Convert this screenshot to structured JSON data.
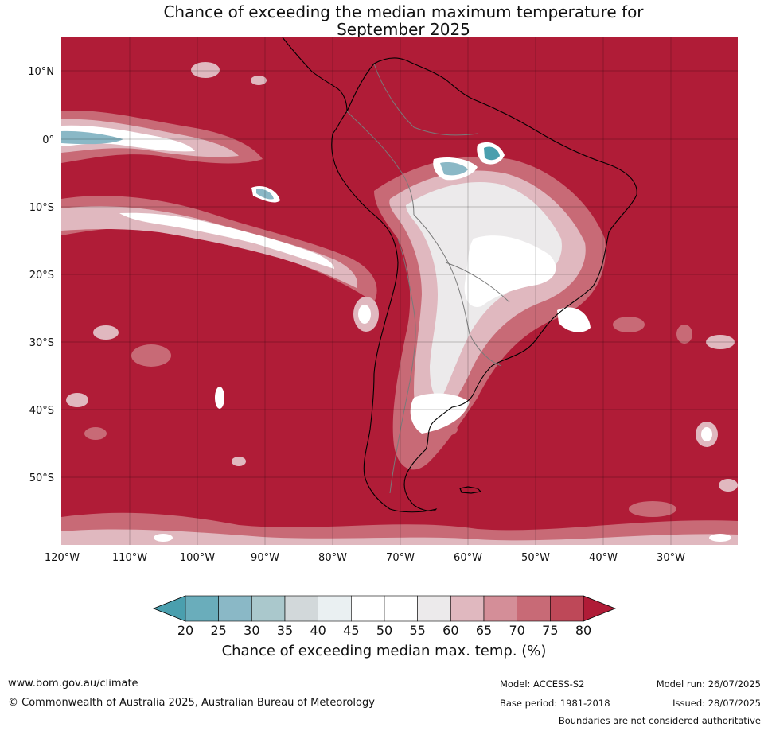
{
  "title_line1": "Chance of exceeding the median maximum temperature for",
  "title_line2": "September 2025",
  "lat_labels": [
    "10°N",
    "0°",
    "10°S",
    "20°S",
    "30°S",
    "40°S",
    "50°S"
  ],
  "lon_labels": [
    "120°W",
    "110°W",
    "100°W",
    "90°W",
    "80°W",
    "70°W",
    "60°W",
    "50°W",
    "40°W",
    "30°W"
  ],
  "colorbar": {
    "ticks": [
      "20",
      "25",
      "30",
      "35",
      "40",
      "45",
      "50",
      "55",
      "60",
      "65",
      "70",
      "75",
      "80"
    ],
    "colors": [
      "#4a9fae",
      "#6aadbb",
      "#8ab8c6",
      "#aac8cc",
      "#d2d8da",
      "#eaf0f2",
      "#ffffff",
      "#ffffff",
      "#eceaeb",
      "#e0b8bf",
      "#d48e98",
      "#c86a76",
      "#be4858",
      "#b01c37"
    ],
    "label": "Chance of exceeding median max. temp. (%)"
  },
  "colors": {
    "high": "#b01c37",
    "band70": "#c86a76",
    "band60": "#e0b8bf",
    "near50": "#ffffff",
    "low": "#4a9fae"
  },
  "footer": {
    "website": "www.bom.gov.au/climate",
    "copyright": "© Commonwealth of Australia 2025, Australian Bureau of Meteorology",
    "model": "Model: ACCESS-S2",
    "base_period": "Base period: 1981-2018",
    "model_run": "Model run: 26/07/2025",
    "issued": "Issued: 28/07/2025",
    "disclaimer": "Boundaries are not considered authoritative"
  }
}
